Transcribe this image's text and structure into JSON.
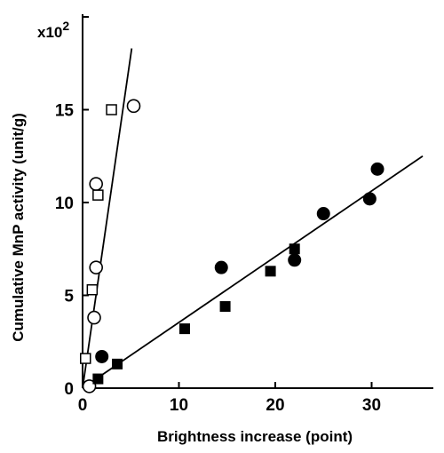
{
  "chart_data": {
    "type": "scatter",
    "xlabel": "Brightness  increase  (point)",
    "ylabel": "Cumulative MnP activity (unit/g)",
    "y_multiplier_base": "x10",
    "y_multiplier_exp": "2",
    "xlim": [
      0,
      38
    ],
    "ylim": [
      0,
      20.5
    ],
    "x_ticks": [
      0,
      10,
      20,
      30
    ],
    "x_tick_labels": [
      "0",
      "10",
      "20",
      "30"
    ],
    "y_ticks": [
      0,
      5,
      10,
      15
    ],
    "y_tick_labels": [
      "0",
      "5",
      "10",
      "15"
    ],
    "grid": false,
    "legend": "none",
    "series": [
      {
        "marker": "open-circle",
        "x": [
          0.7,
          1.2,
          1.4,
          1.4,
          5.3
        ],
        "y": [
          0.1,
          3.8,
          6.5,
          11.0,
          15.2
        ]
      },
      {
        "marker": "open-square",
        "x": [
          0.3,
          1.0,
          1.6,
          3.0
        ],
        "y": [
          1.6,
          5.3,
          10.4,
          15.0
        ]
      },
      {
        "marker": "filled-circle",
        "x": [
          2.0,
          14.4,
          22.0,
          25.0,
          29.8,
          30.6
        ],
        "y": [
          1.7,
          6.5,
          6.9,
          9.4,
          10.2,
          11.8
        ]
      },
      {
        "marker": "filled-square",
        "x": [
          1.6,
          3.6,
          10.6,
          14.8,
          19.5,
          22.0
        ],
        "y": [
          0.5,
          1.3,
          3.2,
          4.4,
          6.3,
          7.5
        ]
      }
    ],
    "fit_lines": [
      {
        "x": [
          0,
          5.1
        ],
        "y": [
          0,
          18.3
        ]
      },
      {
        "x": [
          0,
          35.3
        ],
        "y": [
          0,
          12.5
        ]
      }
    ],
    "colors": {
      "ink": "#000000",
      "background": "#ffffff"
    }
  }
}
